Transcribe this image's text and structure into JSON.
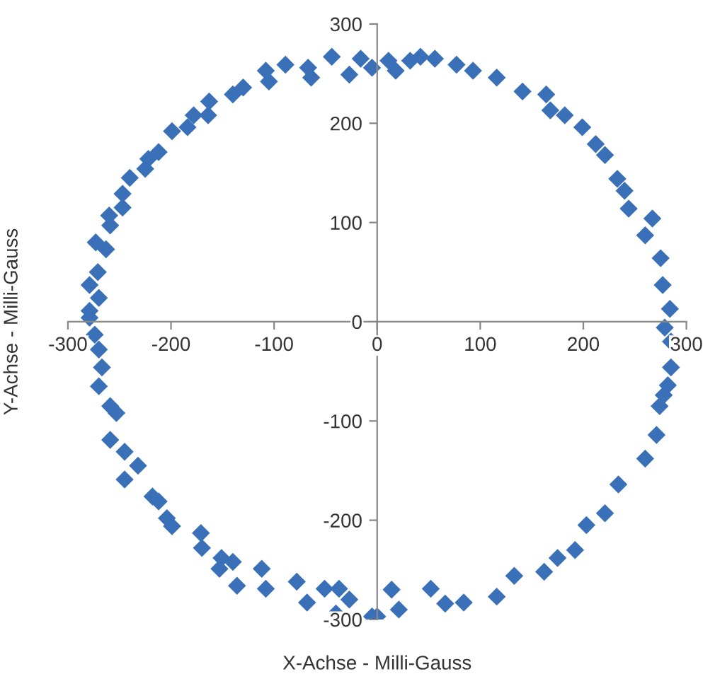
{
  "chart_data": {
    "type": "scatter",
    "xlabel": "X-Achse - Milli-Gauss",
    "ylabel": "Y-Achse - Milli-Gauss",
    "xlim": [
      -300,
      300
    ],
    "ylim": [
      -300,
      300
    ],
    "xticks": [
      -300,
      -200,
      -100,
      0,
      100,
      200,
      300
    ],
    "yticks": [
      -300,
      -200,
      -100,
      0,
      100,
      200,
      300
    ],
    "grid": false,
    "legend": false,
    "marker": "diamond",
    "series": [
      {
        "color": "#3a70b8",
        "x": [
          -279,
          -270,
          -279,
          -271,
          -273,
          -263,
          -259,
          -260,
          -247,
          -247,
          -240,
          -225,
          -222,
          -212,
          -199,
          -184,
          -178,
          -164,
          -163,
          -140,
          -130,
          -108,
          -105,
          -89,
          -67,
          -64,
          -44,
          -27,
          -16,
          -5,
          11,
          18,
          32,
          42,
          56,
          77,
          93,
          116,
          141,
          164,
          168,
          182,
          199,
          212,
          221,
          233,
          240,
          244,
          267,
          260,
          275,
          277,
          284,
          279,
          -279,
          -274,
          -270,
          -267,
          -270,
          -259,
          -253,
          -259,
          -245,
          -232,
          -245,
          -218,
          -212,
          -204,
          -199,
          -171,
          -170,
          -151,
          -153,
          -140,
          -136,
          -112,
          -108,
          -78,
          -68,
          -51,
          -37,
          -27,
          -40,
          -5,
          0,
          14,
          21,
          52,
          66,
          84,
          116,
          133,
          162,
          175,
          192,
          203,
          221,
          234,
          260,
          271,
          274,
          278,
          282,
          285,
          285
        ],
        "values": [
          11,
          24,
          37,
          50,
          80,
          73,
          97,
          107,
          115,
          129,
          145,
          154,
          164,
          171,
          192,
          196,
          208,
          208,
          222,
          229,
          236,
          253,
          242,
          259,
          256,
          246,
          267,
          249,
          265,
          256,
          263,
          253,
          263,
          267,
          265,
          259,
          253,
          246,
          232,
          229,
          213,
          208,
          196,
          179,
          168,
          144,
          132,
          114,
          104,
          87,
          64,
          37,
          13,
          -6,
          4,
          -13,
          -28,
          -46,
          -65,
          -85,
          -92,
          -119,
          -131,
          -145,
          -159,
          -176,
          -181,
          -198,
          -206,
          -213,
          -228,
          -238,
          -249,
          -242,
          -266,
          -249,
          -269,
          -262,
          -283,
          -269,
          -269,
          -280,
          -294,
          -297,
          -297,
          -270,
          -290,
          -269,
          -284,
          -283,
          -277,
          -256,
          -252,
          -238,
          -230,
          -205,
          -193,
          -164,
          -138,
          -114,
          -85,
          -74,
          -64,
          -46,
          -20
        ]
      }
    ]
  }
}
